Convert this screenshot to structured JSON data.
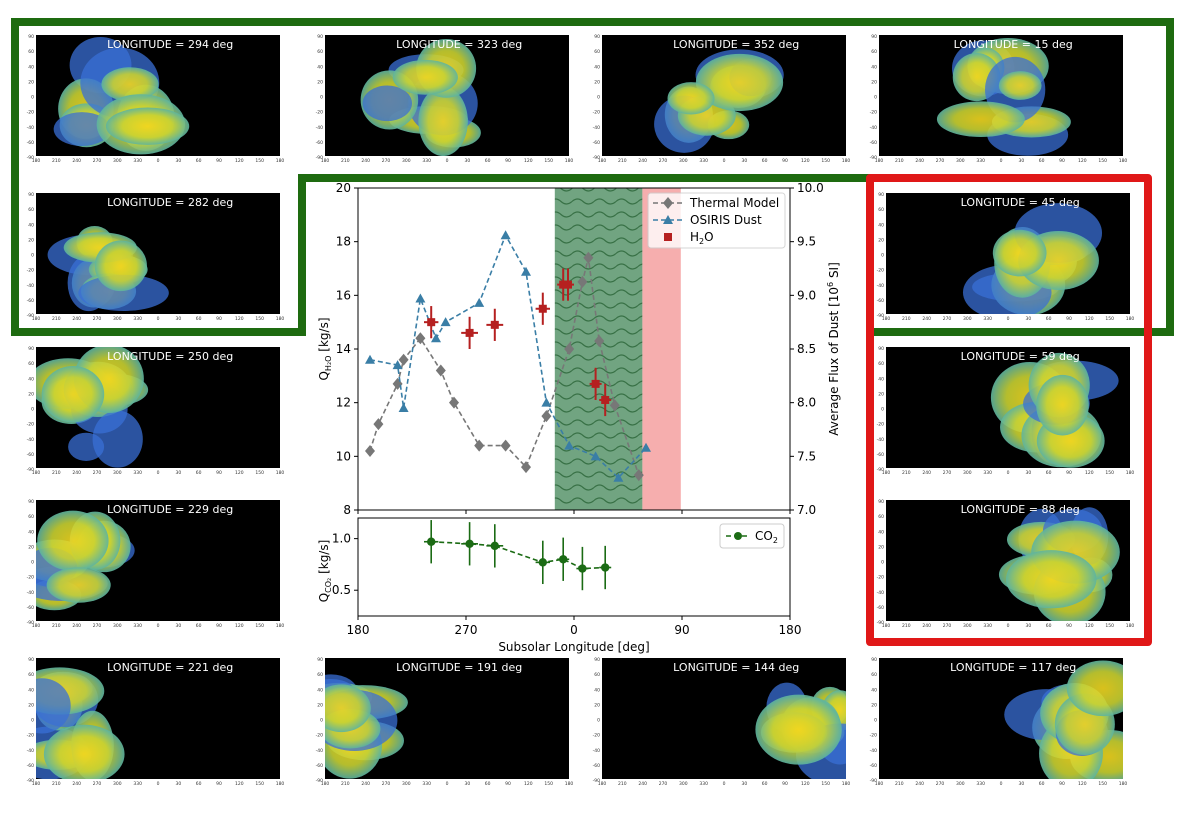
{
  "map_panels": [
    {
      "label": "LONGITUDE = 294 deg",
      "lon": 294
    },
    {
      "label": "LONGITUDE = 323 deg",
      "lon": 323
    },
    {
      "label": "LONGITUDE = 352 deg",
      "lon": 352
    },
    {
      "label": "LONGITUDE = 15 deg",
      "lon": 15
    },
    {
      "label": "LONGITUDE = 282 deg",
      "lon": 282
    },
    {
      "label": "LONGITUDE = 45 deg",
      "lon": 45
    },
    {
      "label": "LONGITUDE = 250 deg",
      "lon": 250
    },
    {
      "label": "LONGITUDE = 59 deg",
      "lon": 59
    },
    {
      "label": "LONGITUDE = 229 deg",
      "lon": 229
    },
    {
      "label": "LONGITUDE = 88 deg",
      "lon": 88
    },
    {
      "label": "LONGITUDE = 221 deg",
      "lon": 221
    },
    {
      "label": "LONGITUDE = 191 deg",
      "lon": 191
    },
    {
      "label": "LONGITUDE = 144 deg",
      "lon": 144
    },
    {
      "label": "LONGITUDE = 117 deg",
      "lon": 117
    }
  ],
  "map_axes": {
    "x_ticks": [
      "180",
      "210",
      "240",
      "270",
      "300",
      "330",
      "0",
      "30",
      "60",
      "90",
      "120",
      "150",
      "180"
    ],
    "y_ticks": [
      "90",
      "60",
      "40",
      "20",
      "0",
      "-20",
      "-40",
      "-60",
      "-90"
    ]
  },
  "colors": {
    "green_box": "#1e6b10",
    "red_box": "#e01818"
  },
  "chart_data": [
    {
      "type": "line",
      "name": "upper",
      "ylabel_left": "Q_H2O [kg/s]",
      "ylabel_right": "Average Flux of Dust [10^6 SI]",
      "xlim_plot": [
        -180,
        180
      ],
      "x_display": "x_plot = 90 - subsolar_longitude (axis reversed)",
      "ylim": [
        8,
        20
      ],
      "ylim_right": [
        7.0,
        10.0
      ],
      "yticks": [
        "8",
        "10",
        "12",
        "14",
        "16",
        "18",
        "20"
      ],
      "yticks_right": [
        "7.0",
        "7.5",
        "8.0",
        "8.5",
        "9.0",
        "9.5",
        "10.0"
      ],
      "shaded_regions": [
        {
          "name": "green-wavy-band",
          "x_plot_range": [
            -16,
            57
          ],
          "color": "#2f7d3a"
        },
        {
          "name": "red-band",
          "x_plot_range": [
            57,
            89
          ],
          "color": "#f08080"
        }
      ],
      "legend_position": "top-right",
      "series": [
        {
          "name": "Thermal Model",
          "axis": "left",
          "color": "#777777",
          "marker": "diamond",
          "x": [
            -170,
            -163,
            -147,
            -142,
            -128,
            -111,
            -100,
            -79,
            -57,
            -40,
            -23,
            -4,
            7,
            12,
            21,
            34,
            54
          ],
          "y": [
            10.2,
            11.2,
            12.7,
            13.6,
            14.4,
            13.2,
            12.0,
            10.4,
            10.4,
            9.6,
            11.5,
            14.0,
            16.5,
            17.4,
            14.3,
            11.9,
            9.3
          ]
        },
        {
          "name": "OSIRIS Dust",
          "axis": "right",
          "color": "#3a7ea6",
          "marker": "triangle",
          "x": [
            -170,
            -147,
            -142,
            -128,
            -115,
            -107,
            -79,
            -57,
            -40,
            -23,
            -4,
            18,
            37,
            60
          ],
          "y": [
            8.4,
            8.35,
            7.95,
            8.97,
            8.6,
            8.75,
            8.93,
            9.56,
            9.22,
            8.0,
            7.6,
            7.5,
            7.3,
            7.58
          ]
        },
        {
          "name": "H2O",
          "axis": "left",
          "color": "#b52020",
          "marker": "square",
          "x": [
            -119,
            -87,
            -66,
            -26,
            -9,
            -5,
            18,
            26
          ],
          "y": [
            15.0,
            14.6,
            14.9,
            15.5,
            16.4,
            16.4,
            12.7,
            12.1
          ],
          "x_err": [
            6,
            7,
            7,
            6,
            5,
            5,
            5,
            5
          ],
          "y_err": [
            0.6,
            0.6,
            0.6,
            0.6,
            0.6,
            0.6,
            0.6,
            0.6
          ]
        }
      ]
    },
    {
      "type": "line",
      "name": "lower",
      "ylabel": "Q_CO2 [kg/s]",
      "xlabel": "Subsolar Longitude [deg]",
      "xlim_plot": [
        -180,
        180
      ],
      "xticks": [
        "180",
        "270",
        "0",
        "90",
        "180"
      ],
      "ylim": [
        0.25,
        1.2
      ],
      "yticks": [
        "0.5",
        "1.0"
      ],
      "legend_position": "top-right",
      "series": [
        {
          "name": "CO2",
          "color": "#1b6b14",
          "marker": "circle",
          "x": [
            -119,
            -87,
            -66,
            -26,
            -9,
            7,
            26
          ],
          "y": [
            0.97,
            0.95,
            0.93,
            0.77,
            0.8,
            0.71,
            0.72
          ],
          "x_err": [
            6,
            7,
            7,
            6,
            5,
            5,
            5
          ],
          "y_err": [
            0.21,
            0.21,
            0.21,
            0.21,
            0.21,
            0.21,
            0.21
          ]
        }
      ]
    }
  ],
  "legend_main": {
    "thermal": "Thermal Model",
    "osiris": "OSIRIS Dust",
    "h2o_main": "H",
    "h2o_sub": "2",
    "h2o_end": "O"
  },
  "legend_co2": {
    "main": "CO",
    "sub": "2"
  },
  "labels": {
    "q_main": "Q",
    "q_h2o_sub": "H₂O",
    "q_unit": " [kg/s]",
    "q_co2_sub": "CO₂",
    "flux_main": "Average Flux of Dust [10",
    "flux_sup": "6",
    "flux_end": " SI]",
    "xlabel": "Subsolar Longitude [deg]"
  }
}
